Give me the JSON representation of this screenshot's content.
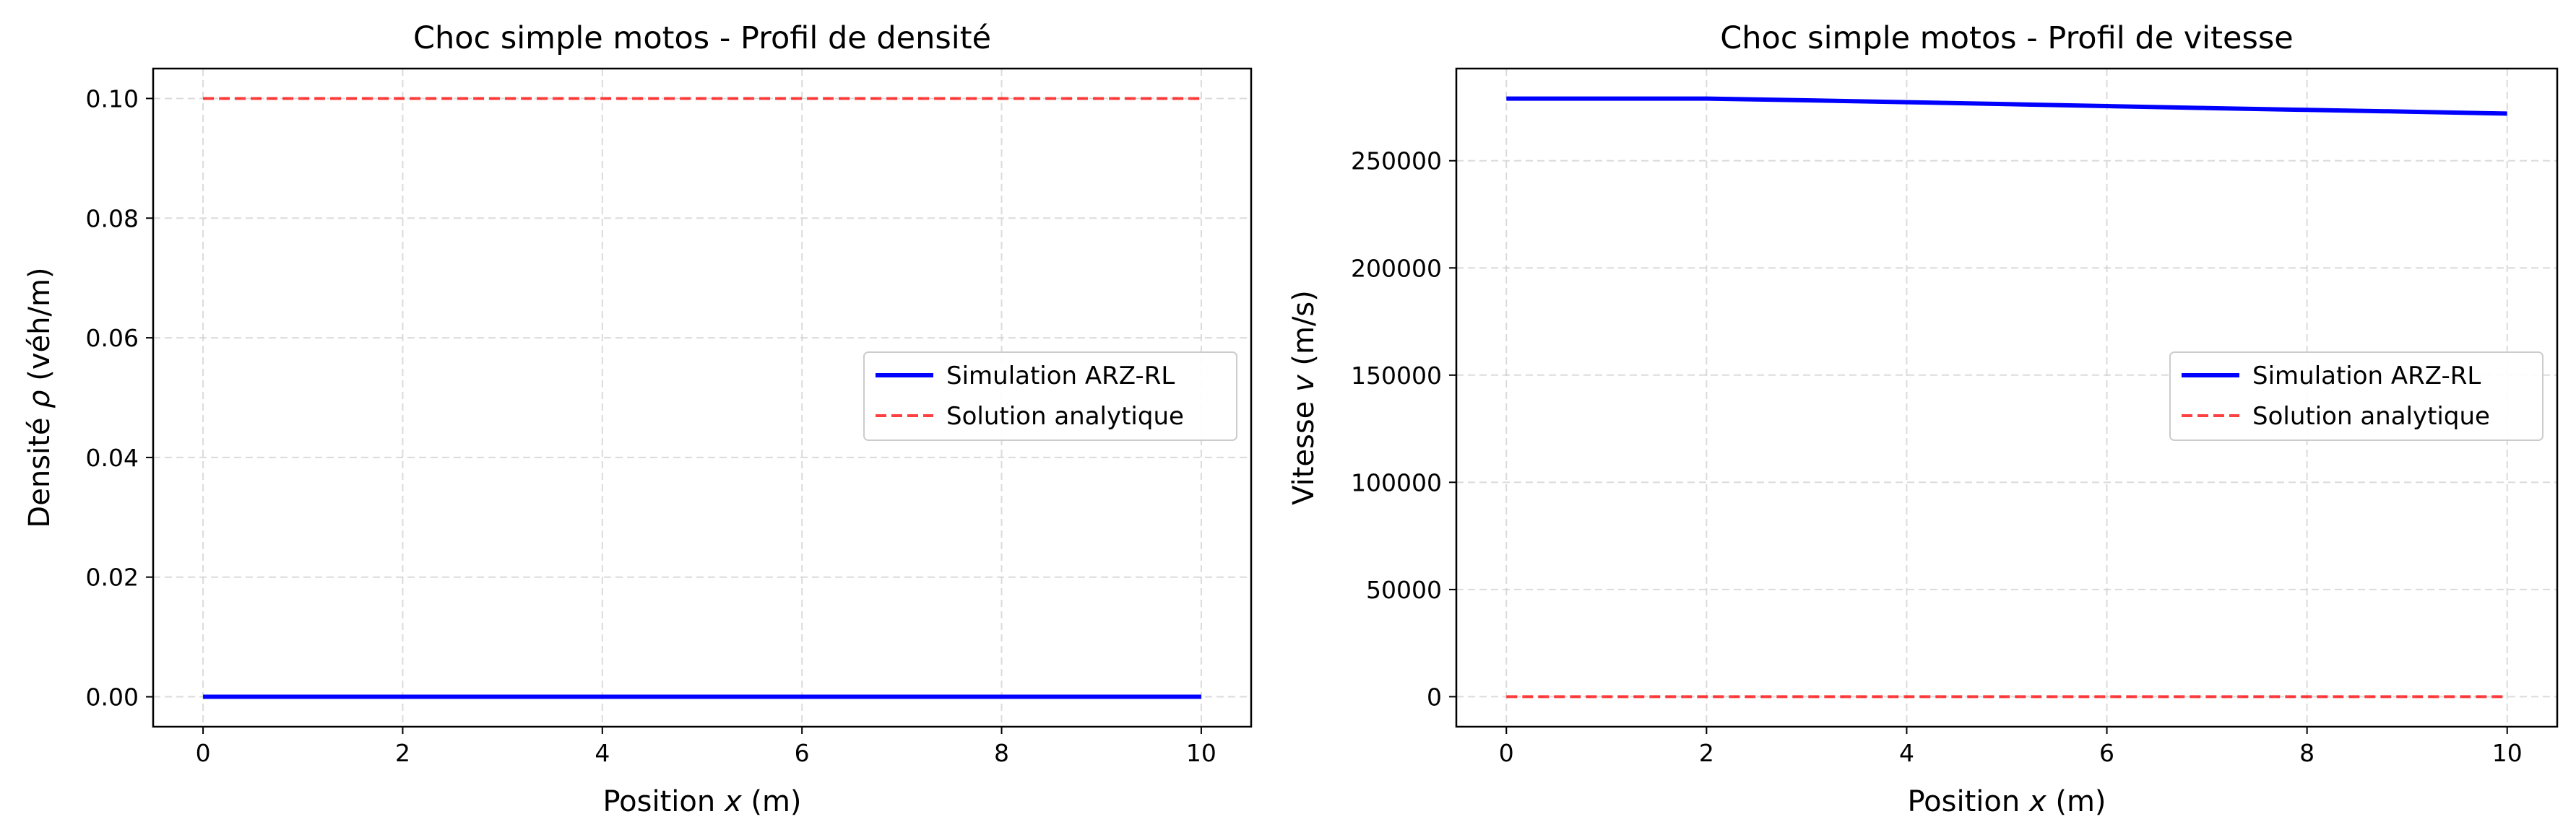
{
  "chart_data": [
    {
      "type": "line",
      "title": "Choc simple motos - Profil de densité",
      "xlabel": "Position x (m)",
      "ylabel": "Densité ρ (véh/m)",
      "xlim": [
        -0.5,
        10.5
      ],
      "ylim": [
        -0.005,
        0.105
      ],
      "xticks": [
        0,
        2,
        4,
        6,
        8,
        10
      ],
      "xtick_labels": [
        "0",
        "2",
        "4",
        "6",
        "8",
        "10"
      ],
      "yticks": [
        0,
        0.02,
        0.04,
        0.06,
        0.08,
        0.1
      ],
      "ytick_labels": [
        "0.00",
        "0.02",
        "0.04",
        "0.06",
        "0.08",
        "0.10"
      ],
      "grid": true,
      "legend_position": "center-right",
      "series": [
        {
          "name": "Simulation ARZ-RL",
          "color": "#0000ff",
          "style": "solid",
          "x": [
            0,
            2,
            4,
            6,
            8,
            10
          ],
          "y": [
            0,
            0,
            0,
            0,
            0,
            0
          ]
        },
        {
          "name": "Solution analytique",
          "color": "#ff0000",
          "style": "dashed",
          "x": [
            0,
            2,
            4,
            6,
            8,
            10
          ],
          "y": [
            0.1,
            0.1,
            0.1,
            0.1,
            0.1,
            0.1
          ]
        }
      ]
    },
    {
      "type": "line",
      "title": "Choc simple motos - Profil de vitesse",
      "xlabel": "Position x (m)",
      "ylabel": "Vitesse v (m/s)",
      "xlim": [
        -0.5,
        10.5
      ],
      "ylim": [
        -14000,
        293000
      ],
      "xticks": [
        0,
        2,
        4,
        6,
        8,
        10
      ],
      "xtick_labels": [
        "0",
        "2",
        "4",
        "6",
        "8",
        "10"
      ],
      "yticks": [
        0,
        50000,
        100000,
        150000,
        200000,
        250000
      ],
      "ytick_labels": [
        "0",
        "50000",
        "100000",
        "150000",
        "200000",
        "250000"
      ],
      "grid": true,
      "legend_position": "center-right",
      "series": [
        {
          "name": "Simulation ARZ-RL",
          "color": "#0000ff",
          "style": "solid",
          "x": [
            0,
            1,
            2,
            3,
            4,
            5,
            6,
            7,
            8,
            9,
            10
          ],
          "y": [
            279000,
            279000,
            279000,
            278200,
            277300,
            276400,
            275500,
            274600,
            273700,
            272900,
            272000
          ]
        },
        {
          "name": "Solution analytique",
          "color": "#ff0000",
          "style": "dashed",
          "x": [
            0,
            2,
            4,
            6,
            8,
            10
          ],
          "y": [
            0,
            0,
            0,
            0,
            0,
            0
          ]
        }
      ]
    }
  ]
}
